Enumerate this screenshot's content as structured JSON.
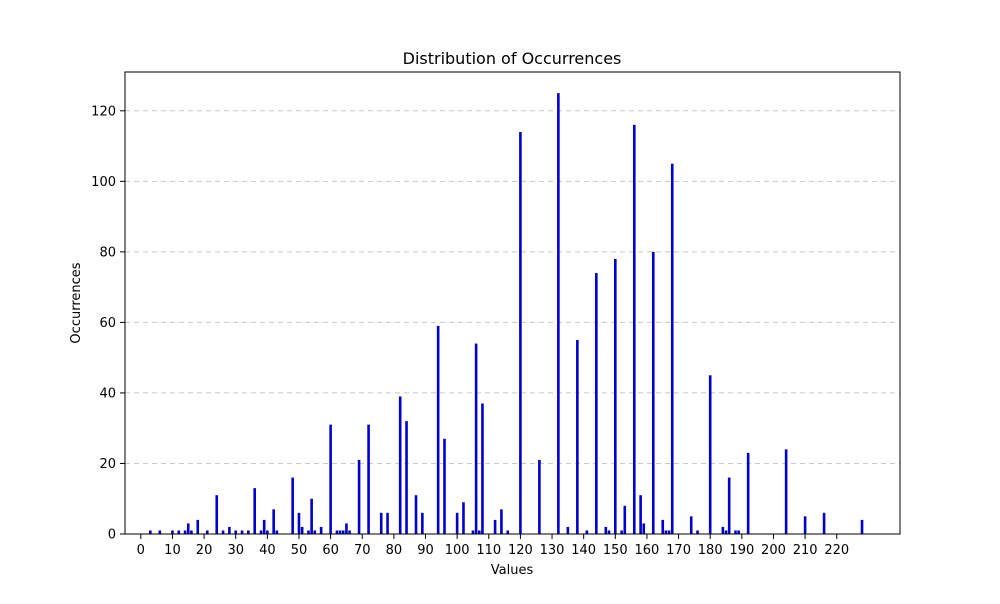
{
  "chart_data": {
    "type": "bar",
    "title": "Distribution of Occurrences",
    "xlabel": "Values",
    "ylabel": "Occurrences",
    "xlim": [
      -5,
      240
    ],
    "ylim": [
      0,
      131
    ],
    "x_ticks": [
      0,
      10,
      20,
      30,
      40,
      50,
      60,
      70,
      80,
      90,
      100,
      110,
      120,
      130,
      140,
      150,
      160,
      170,
      180,
      190,
      200,
      210,
      220
    ],
    "y_ticks": [
      0,
      20,
      40,
      60,
      80,
      100,
      120
    ],
    "grid": "y-dashed",
    "bar_color": "#0000cc",
    "x": [
      3,
      6,
      10,
      12,
      14,
      15,
      16,
      18,
      21,
      24,
      26,
      28,
      30,
      32,
      34,
      36,
      38,
      39,
      40,
      42,
      43,
      48,
      50,
      51,
      53,
      54,
      55,
      57,
      60,
      62,
      63,
      64,
      65,
      66,
      69,
      72,
      76,
      78,
      82,
      84,
      87,
      89,
      94,
      96,
      100,
      102,
      105,
      106,
      107,
      108,
      112,
      114,
      116,
      120,
      126,
      132,
      135,
      138,
      141,
      144,
      147,
      148,
      150,
      152,
      153,
      156,
      158,
      159,
      162,
      165,
      166,
      167,
      168,
      174,
      176,
      180,
      184,
      185,
      186,
      188,
      189,
      192,
      204,
      210,
      216,
      228
    ],
    "values": [
      1,
      1,
      1,
      1,
      1,
      3,
      1,
      4,
      1,
      11,
      1,
      2,
      1,
      1,
      1,
      13,
      1,
      4,
      1,
      7,
      1,
      16,
      6,
      2,
      1,
      10,
      1,
      2,
      31,
      1,
      1,
      1,
      3,
      1,
      21,
      31,
      6,
      6,
      39,
      32,
      11,
      6,
      59,
      27,
      6,
      9,
      1,
      54,
      1,
      37,
      4,
      7,
      1,
      114,
      21,
      125,
      2,
      55,
      1,
      74,
      2,
      1,
      78,
      1,
      8,
      116,
      11,
      3,
      80,
      4,
      1,
      1,
      105,
      5,
      1,
      45,
      2,
      1,
      16,
      1,
      1,
      23,
      24,
      5,
      6,
      4
    ]
  }
}
